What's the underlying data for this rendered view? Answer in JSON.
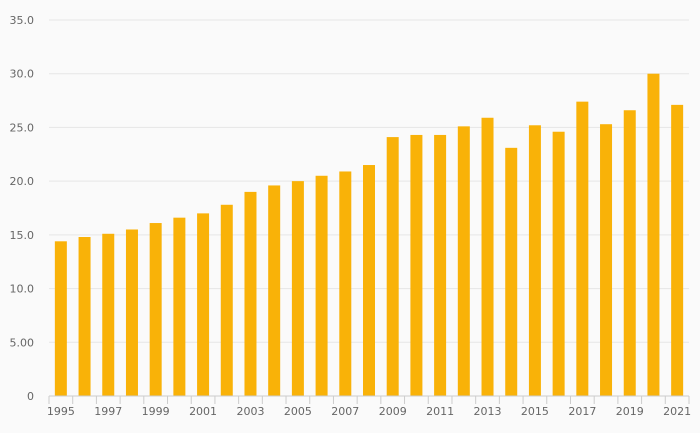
{
  "chart_data": {
    "type": "bar",
    "title": "",
    "xlabel": "",
    "ylabel": "",
    "categories": [
      "1995",
      "1996",
      "1997",
      "1998",
      "1999",
      "2000",
      "2001",
      "2002",
      "2003",
      "2004",
      "2005",
      "2006",
      "2007",
      "2008",
      "2009",
      "2010",
      "2011",
      "2012",
      "2013",
      "2014",
      "2015",
      "2016",
      "2017",
      "2018",
      "2019",
      "2020",
      "2021"
    ],
    "values": [
      14.4,
      14.8,
      15.1,
      15.5,
      16.1,
      16.6,
      17.0,
      17.8,
      19.0,
      19.6,
      20.0,
      20.5,
      20.9,
      21.5,
      24.1,
      24.3,
      24.3,
      25.1,
      25.9,
      23.1,
      25.2,
      24.6,
      27.4,
      25.3,
      26.6,
      30.0,
      27.1
    ],
    "x_tick_labels": [
      "1995",
      "1997",
      "1999",
      "2001",
      "2003",
      "2005",
      "2007",
      "2009",
      "2011",
      "2013",
      "2015",
      "2017",
      "2019",
      "2021"
    ],
    "y_ticks": [
      0,
      5,
      10,
      15,
      20,
      25,
      30,
      35
    ],
    "y_tick_labels": [
      "0",
      "5.00",
      "10.0",
      "15.0",
      "20.0",
      "25.0",
      "30.0",
      "35.0"
    ],
    "ylim": [
      0,
      35
    ],
    "grid": true,
    "legend": "none",
    "bar_color": "#f9b208"
  }
}
